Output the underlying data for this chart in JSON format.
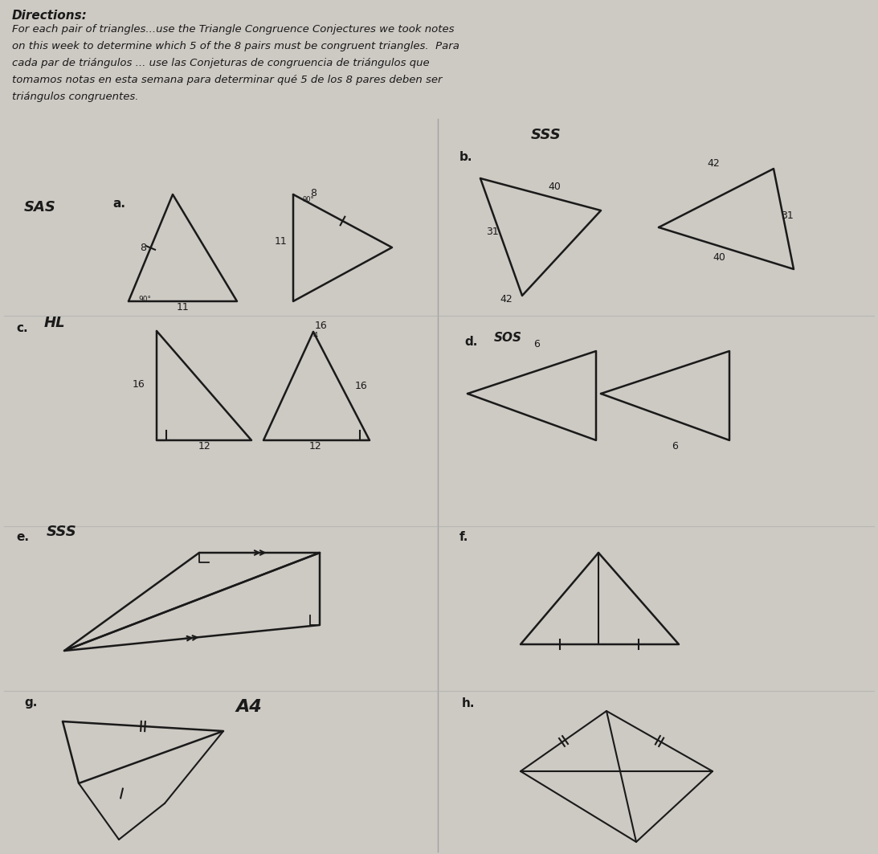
{
  "bg_color": "#cdc9c3",
  "title_line0": "Directions:",
  "title_lines": [
    "For each pair of triangles...use the Triangle Congruence Conjectures we took notes",
    "on this week to determine which 5 of the 8 pairs must be congruent triangles.  Para",
    "cada par de triángulos ... use las Conjeturas de congruencia de triángulos que",
    "tomamos notas en esta semana para determinar qué 5 de los 8 pares deben ser",
    "triángulos congruentes."
  ]
}
